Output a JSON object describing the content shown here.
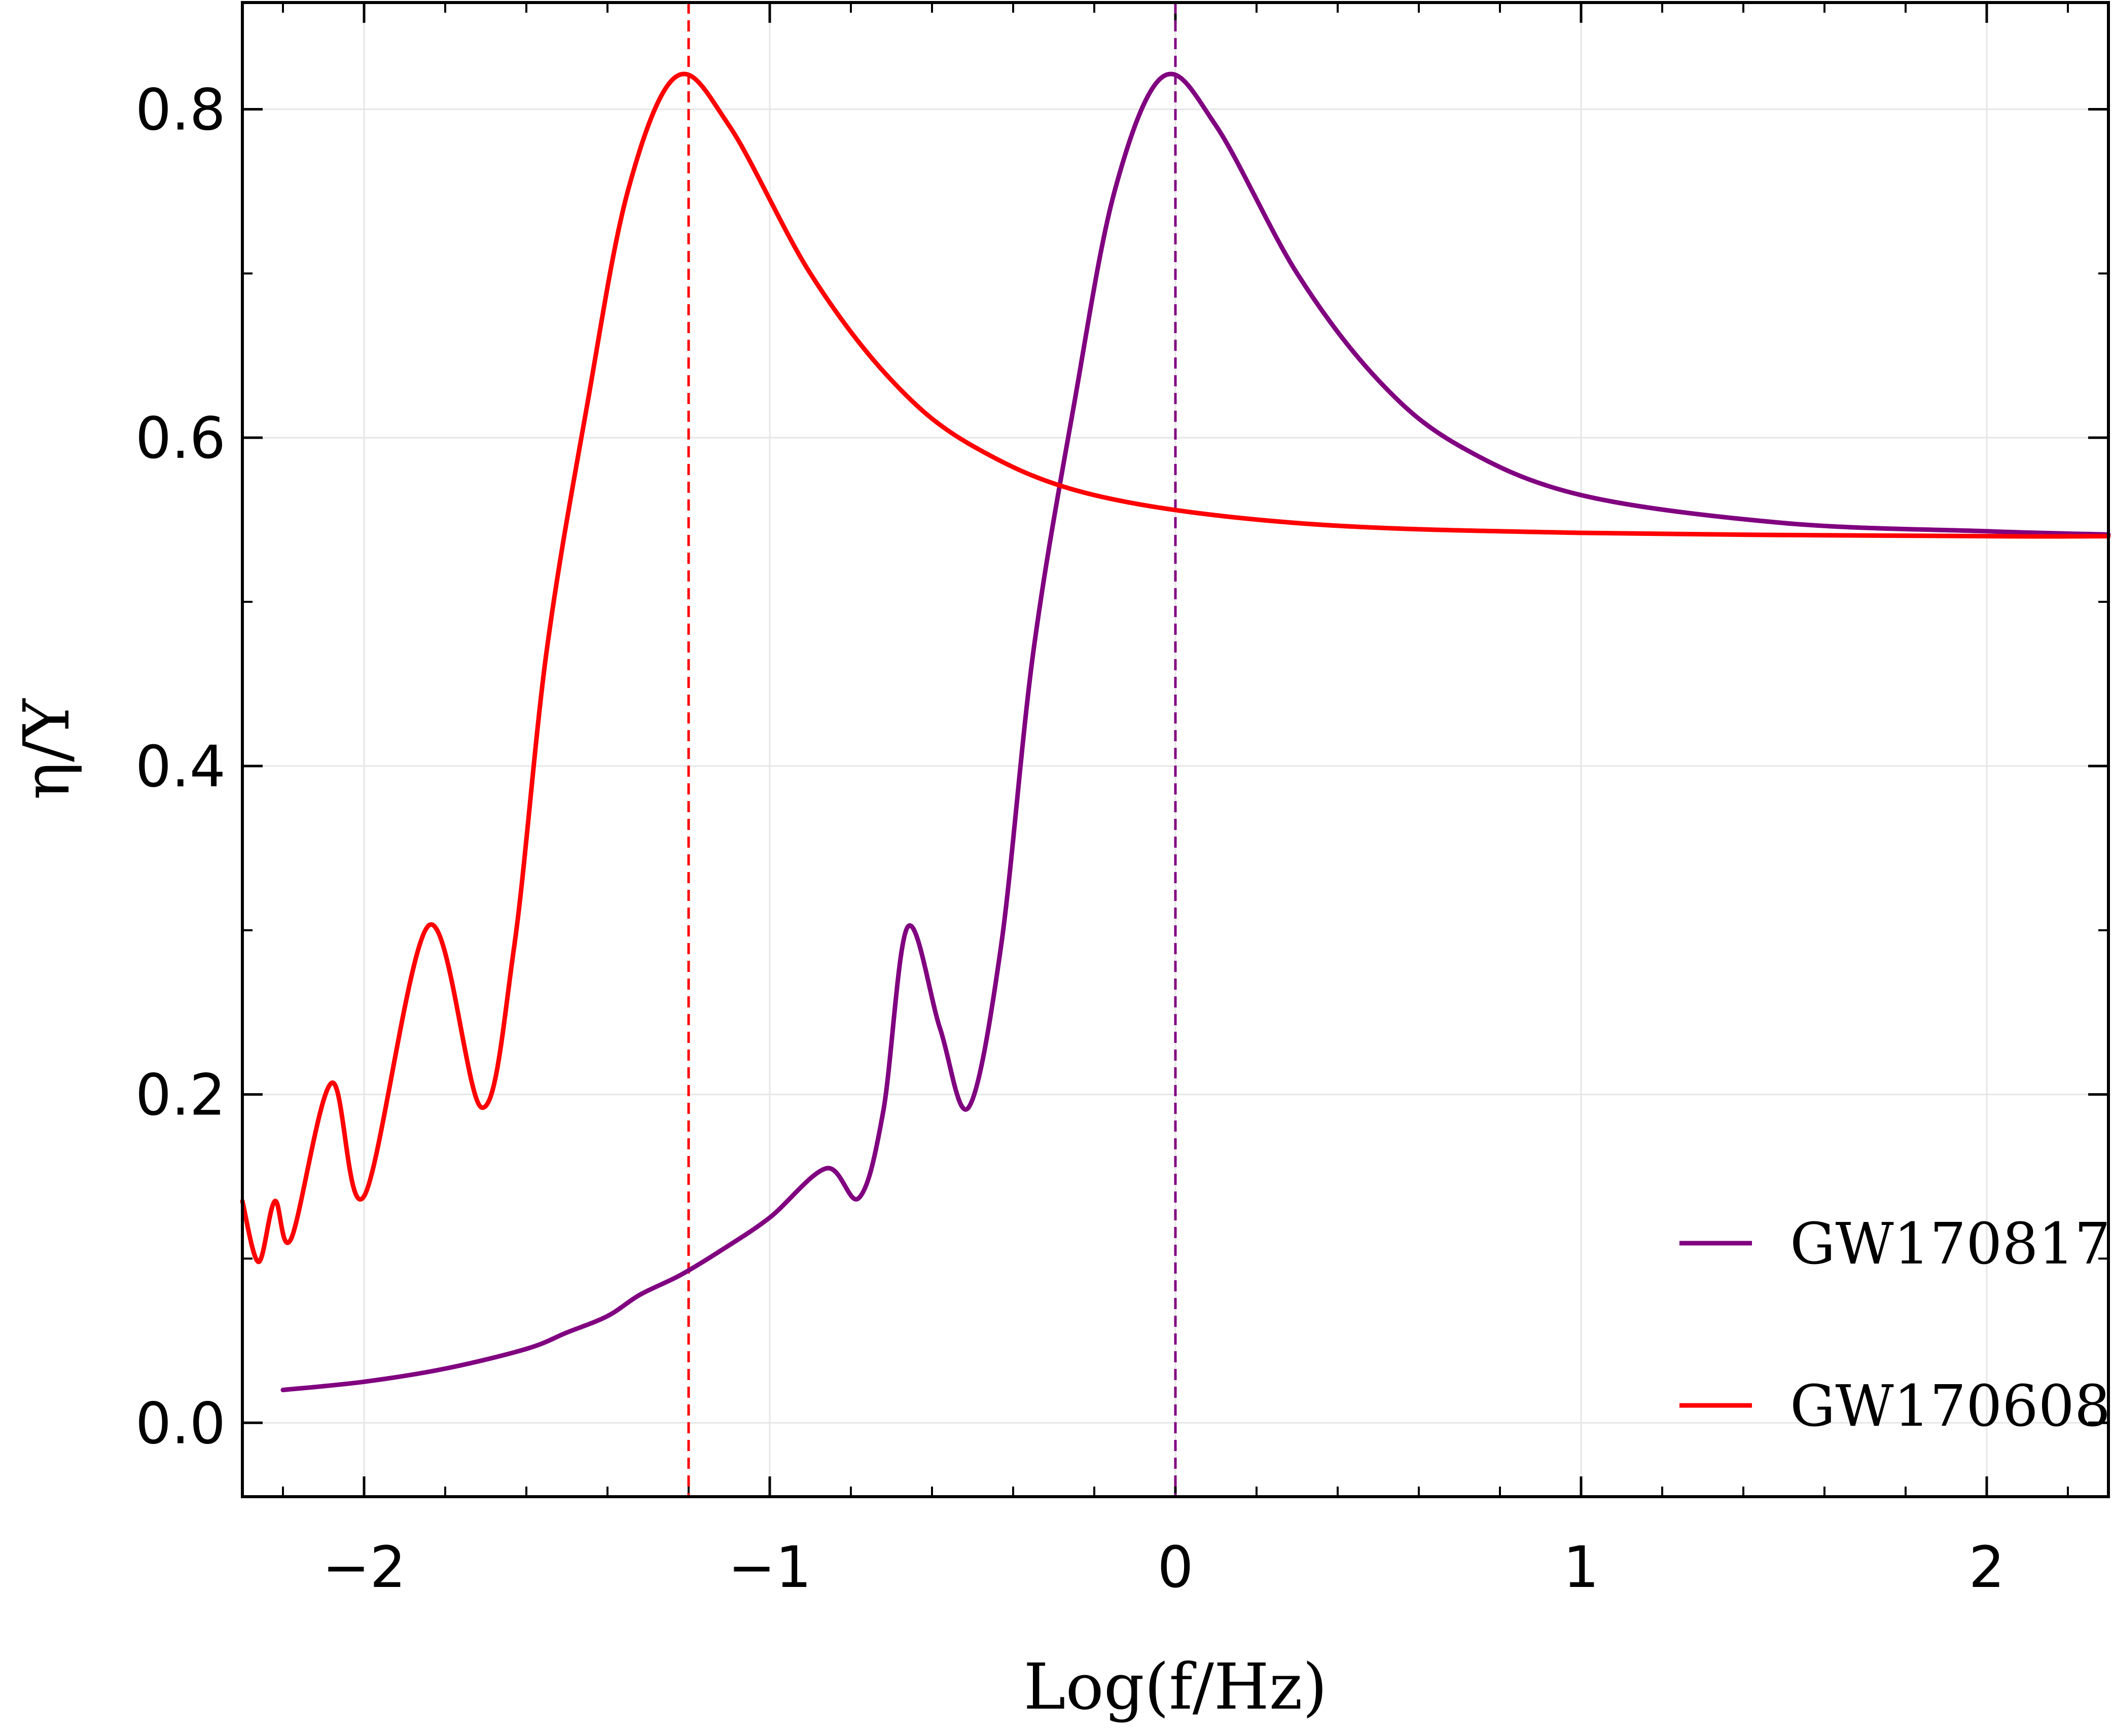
{
  "chart_data": {
    "type": "line",
    "title": "",
    "xlabel": "Log(f/Hz)",
    "ylabel": "η/Υ",
    "xlim": [
      -2.3,
      2.3
    ],
    "ylim": [
      -0.045,
      0.865
    ],
    "grid": true,
    "legend_position": "bottom-right",
    "x_ticks": [
      {
        "value": -2,
        "label": "−2"
      },
      {
        "value": -1,
        "label": "−1"
      },
      {
        "value": 0,
        "label": "0"
      },
      {
        "value": 1,
        "label": "1"
      },
      {
        "value": 2,
        "label": "2"
      }
    ],
    "y_ticks": [
      {
        "value": 0.0,
        "label": "0.0"
      },
      {
        "value": 0.2,
        "label": "0.2"
      },
      {
        "value": 0.4,
        "label": "0.4"
      },
      {
        "value": 0.6,
        "label": "0.6"
      },
      {
        "value": 0.8,
        "label": "0.8"
      }
    ],
    "series": [
      {
        "name": "GW170817",
        "color": "#800080",
        "peak_x": -0.03,
        "peak_y": 0.82,
        "asymptote_y": 0.54,
        "x_start": -2.2,
        "x_end": 2.3,
        "marker_line_x": 0.0,
        "points": [
          [
            -2.2,
            0.02
          ],
          [
            -2.0,
            0.025
          ],
          [
            -1.8,
            0.033
          ],
          [
            -1.6,
            0.045
          ],
          [
            -1.5,
            0.055
          ],
          [
            -1.4,
            0.065
          ],
          [
            -1.32,
            0.078
          ],
          [
            -1.22,
            0.09
          ],
          [
            -1.12,
            0.105
          ],
          [
            -1.0,
            0.125
          ],
          [
            -0.86,
            0.155
          ],
          [
            -0.78,
            0.137
          ],
          [
            -0.72,
            0.19
          ],
          [
            -0.66,
            0.302
          ],
          [
            -0.58,
            0.24
          ],
          [
            -0.51,
            0.192
          ],
          [
            -0.43,
            0.29
          ],
          [
            -0.35,
            0.47
          ],
          [
            -0.25,
            0.62
          ],
          [
            -0.15,
            0.75
          ],
          [
            -0.03,
            0.82
          ],
          [
            0.1,
            0.79
          ],
          [
            0.3,
            0.7
          ],
          [
            0.5,
            0.635
          ],
          [
            0.7,
            0.595
          ],
          [
            1.0,
            0.565
          ],
          [
            1.5,
            0.548
          ],
          [
            2.0,
            0.543
          ],
          [
            2.3,
            0.541
          ]
        ]
      },
      {
        "name": "GW170608",
        "color": "#ff0000",
        "peak_x": -1.23,
        "peak_y": 0.82,
        "asymptote_y": 0.54,
        "x_start": -2.3,
        "x_end": 2.3,
        "marker_line_x": -1.2,
        "points": [
          [
            -2.3,
            0.135
          ],
          [
            -2.26,
            0.098
          ],
          [
            -2.22,
            0.135
          ],
          [
            -2.18,
            0.112
          ],
          [
            -2.08,
            0.207
          ],
          [
            -2.0,
            0.138
          ],
          [
            -1.84,
            0.303
          ],
          [
            -1.71,
            0.192
          ],
          [
            -1.63,
            0.29
          ],
          [
            -1.55,
            0.47
          ],
          [
            -1.45,
            0.62
          ],
          [
            -1.35,
            0.75
          ],
          [
            -1.23,
            0.82
          ],
          [
            -1.1,
            0.79
          ],
          [
            -0.9,
            0.7
          ],
          [
            -0.7,
            0.635
          ],
          [
            -0.5,
            0.595
          ],
          [
            -0.2,
            0.565
          ],
          [
            0.3,
            0.548
          ],
          [
            1.0,
            0.542
          ],
          [
            2.0,
            0.54
          ],
          [
            2.3,
            0.54
          ]
        ]
      }
    ]
  }
}
